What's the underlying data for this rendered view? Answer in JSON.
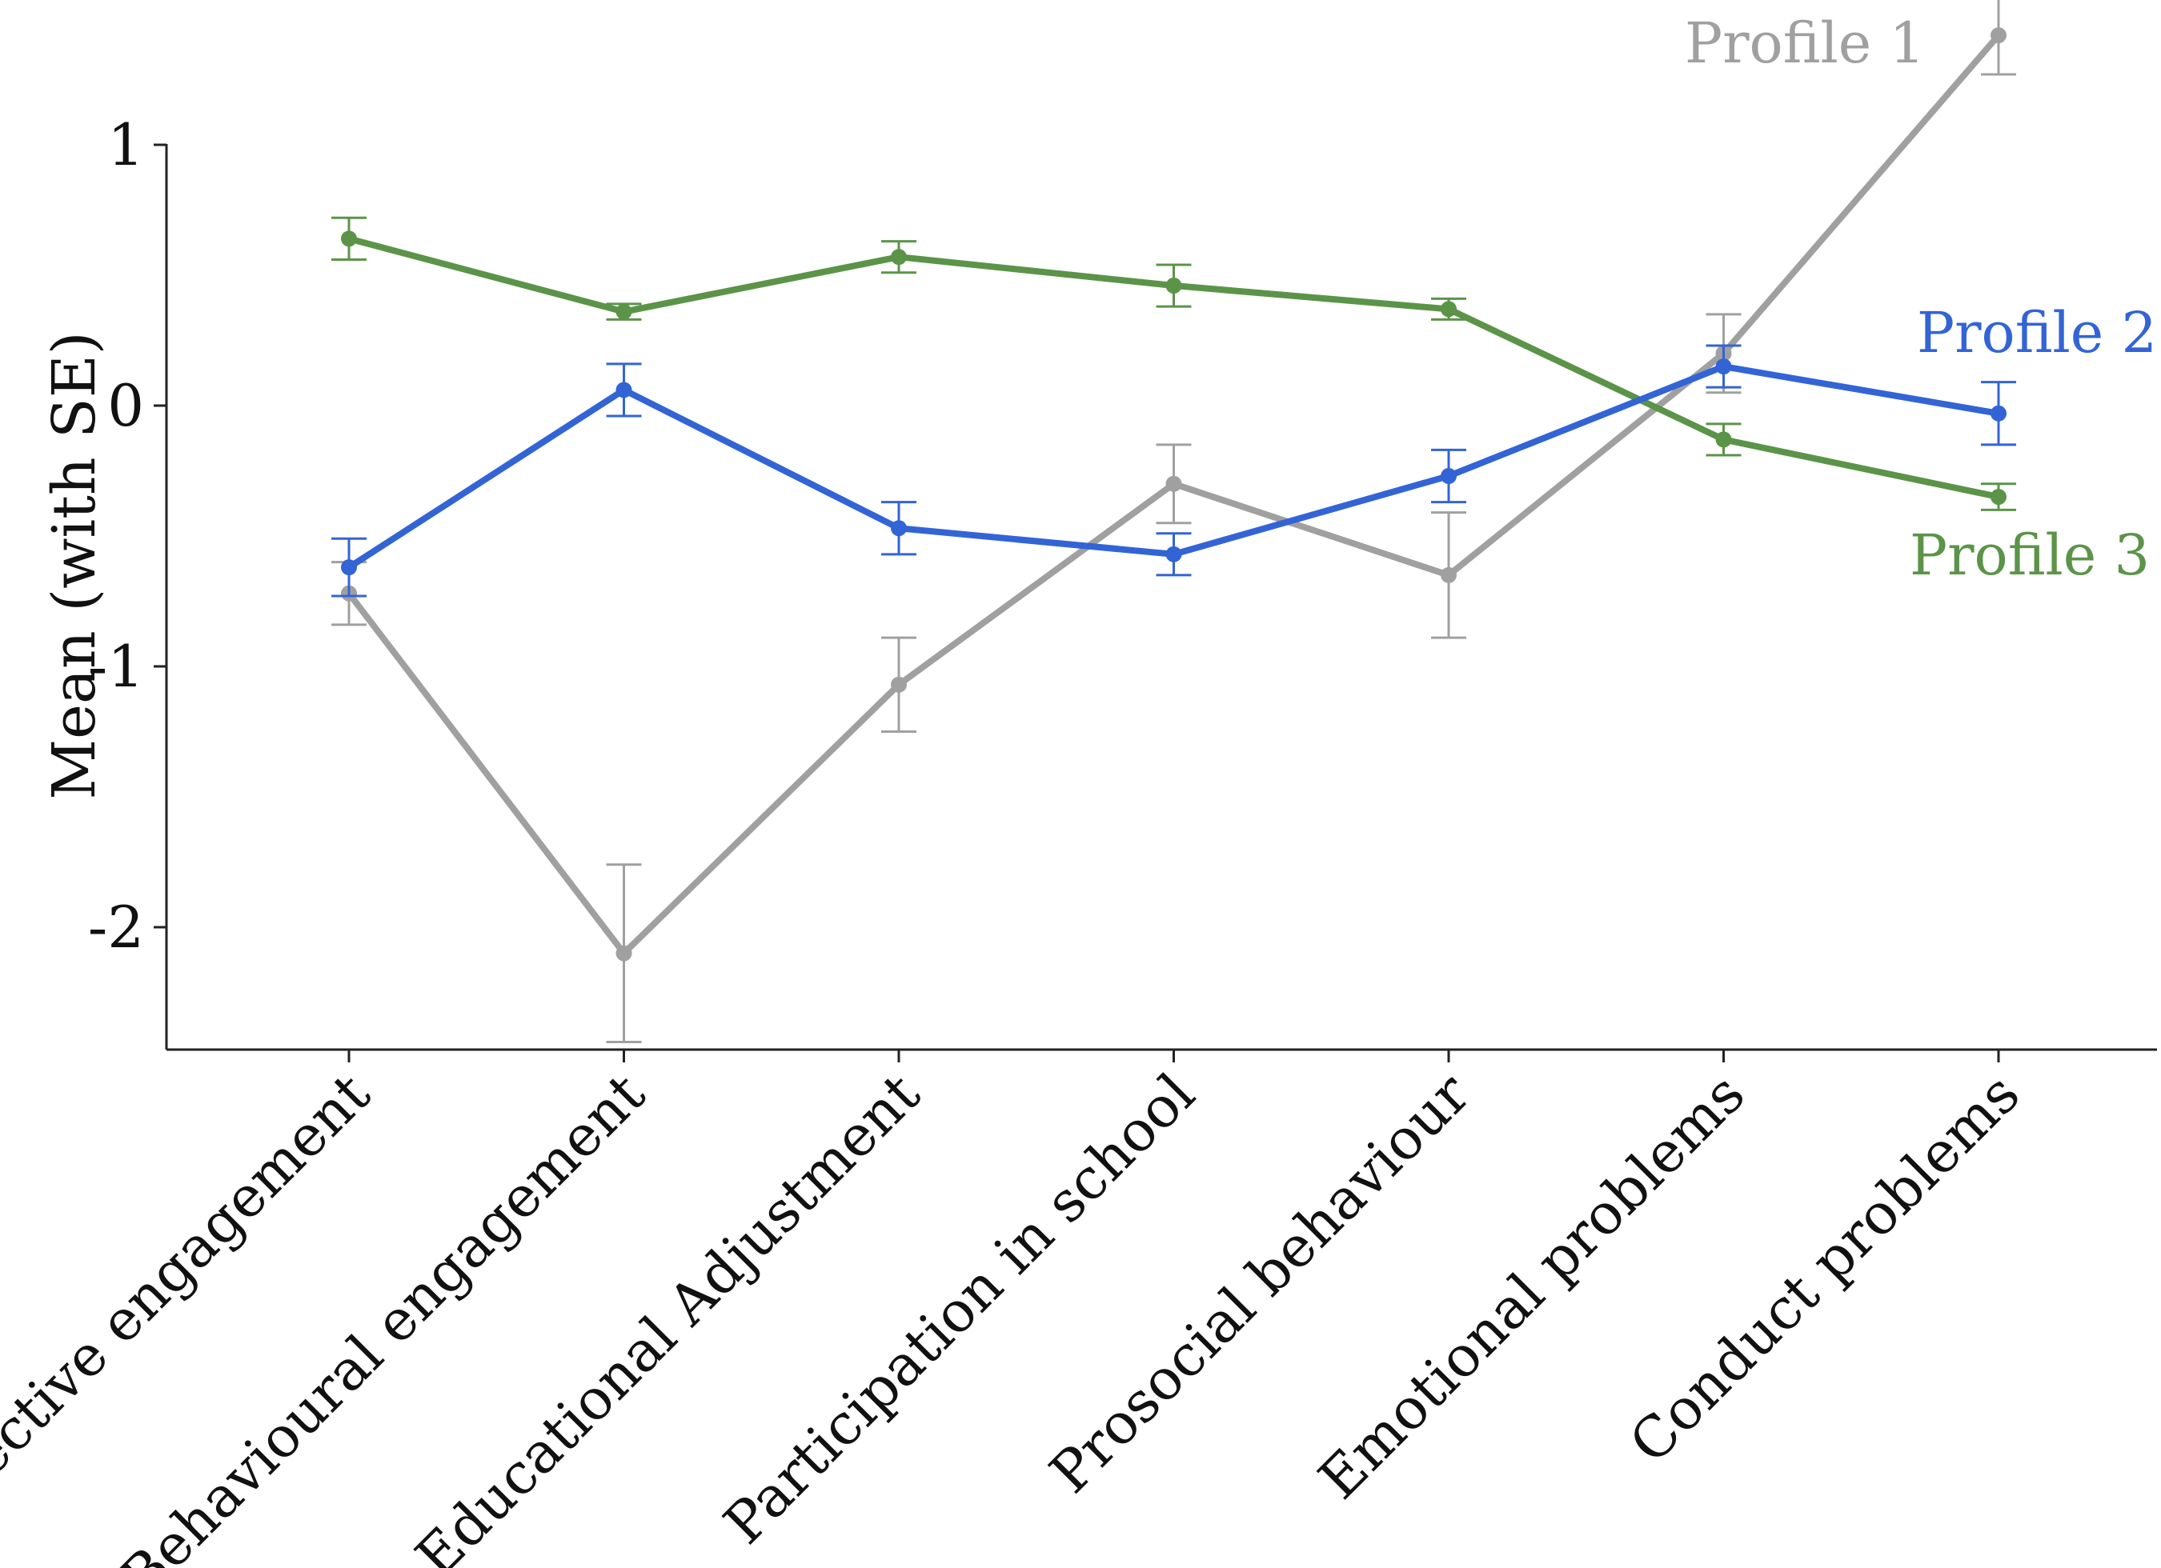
{
  "chart_data": {
    "type": "line",
    "title": "",
    "xlabel": "",
    "ylabel": "Mean (with SE)",
    "ylim": [
      -2.5,
      1.5
    ],
    "yticks": [
      1,
      0,
      -1,
      -2
    ],
    "ytick_labels": [
      "1",
      "0",
      "-1",
      "-2"
    ],
    "categories": [
      "Affective engagement",
      "Behavioural engagement",
      "Educational Adjustment",
      "Participation in school",
      "Prosocial behaviour",
      "Emotional problems",
      "Conduct problems"
    ],
    "grid": false,
    "legend": "inline labels at right end of each line",
    "series": [
      {
        "name": "Profile 1",
        "color": "#a0a0a0",
        "values": [
          -0.72,
          -2.1,
          -1.07,
          -0.3,
          -0.65,
          0.2,
          1.42
        ],
        "se": [
          0.12,
          0.34,
          0.18,
          0.15,
          0.24,
          0.15,
          0.15
        ]
      },
      {
        "name": "Profile 2",
        "color": "#3364d6",
        "values": [
          -0.62,
          0.06,
          -0.47,
          -0.57,
          -0.27,
          0.15,
          -0.03
        ],
        "se": [
          0.11,
          0.1,
          0.1,
          0.08,
          0.1,
          0.08,
          0.12
        ]
      },
      {
        "name": "Profile 3",
        "color": "#5b9448",
        "values": [
          0.64,
          0.36,
          0.57,
          0.46,
          0.37,
          -0.13,
          -0.35
        ],
        "se": [
          0.08,
          0.03,
          0.06,
          0.08,
          0.04,
          0.06,
          0.05
        ]
      }
    ]
  }
}
